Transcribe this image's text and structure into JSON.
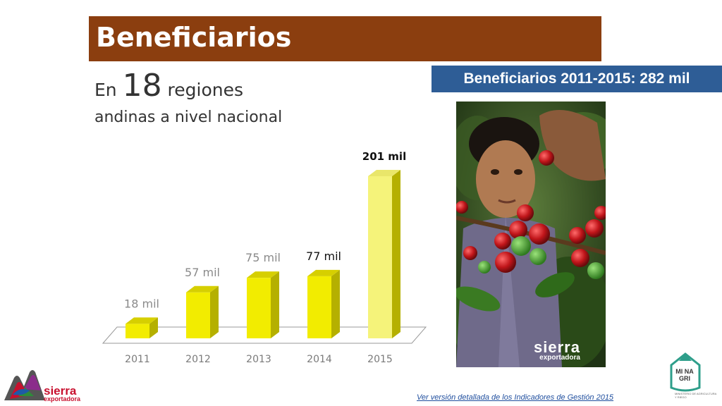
{
  "title": "Beneficiarios",
  "subtitle": {
    "prefix": "En",
    "number": "18",
    "suffix": "regiones",
    "line2": "andinas a nivel nacional"
  },
  "total_badge": "Beneficiarios 2011-2015: 282 mil",
  "photo": {
    "brand_line1": "sierra",
    "brand_line2": "exportadora"
  },
  "logo_left": {
    "line1": "sierra",
    "line2": "exportadora"
  },
  "logo_right": {
    "mark": "MI NA GRI",
    "caption": "MINISTERIO DE AGRICULTURA Y RIEGO"
  },
  "footer_link": "Ver versión detallada de los Indicadores de Gestión 2015",
  "colors": {
    "title_bg": "#8B3E0F",
    "badge_bg": "#2E5D96",
    "bar_fill": "#F2EC00",
    "bar_highlight": "#F5F37A",
    "link": "#1F4E9E"
  },
  "chart_data": {
    "type": "bar",
    "categories": [
      "2011",
      "2012",
      "2013",
      "2014",
      "2015"
    ],
    "values": [
      18,
      57,
      75,
      77,
      201
    ],
    "data_labels": [
      "18 mil",
      "57 mil",
      "75 mil",
      "77 mil",
      "201 mil"
    ],
    "ylim": [
      0,
      201
    ],
    "style": "3d",
    "grid": false
  }
}
